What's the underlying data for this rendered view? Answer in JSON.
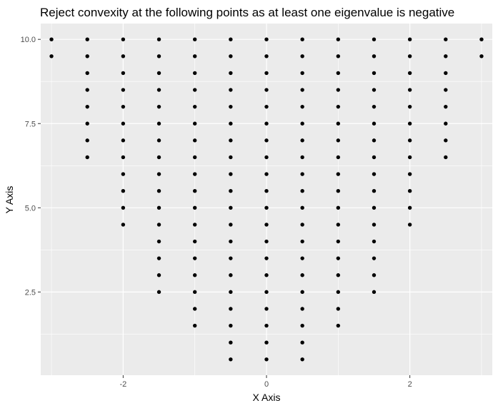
{
  "chart_data": {
    "type": "scatter",
    "title": "Reject convexity at the following points as at least one eigenvalue is negative",
    "xlabel": "X Axis",
    "ylabel": "Y Axis",
    "xlim": [
      -3.15,
      3.15
    ],
    "ylim": [
      0.03,
      10.47
    ],
    "x_ticks": [
      -2,
      0,
      2
    ],
    "x_tick_labels": [
      "-2",
      "0",
      "2"
    ],
    "y_ticks": [
      2.5,
      5.0,
      7.5,
      10.0
    ],
    "y_tick_labels": [
      "2.5",
      "5.0",
      "7.5",
      "10.0"
    ],
    "grid": true,
    "panel_background": "#EBEBEB",
    "grid_color": "#FFFFFF",
    "point_color": "#000000",
    "columns": [
      {
        "x": -3.0,
        "y_min": 9.5,
        "y_max": 10.0
      },
      {
        "x": -2.5,
        "y_min": 6.5,
        "y_max": 10.0
      },
      {
        "x": -2.0,
        "y_min": 4.5,
        "y_max": 10.0
      },
      {
        "x": -1.5,
        "y_min": 2.5,
        "y_max": 10.0
      },
      {
        "x": -1.0,
        "y_min": 1.5,
        "y_max": 10.0
      },
      {
        "x": -0.5,
        "y_min": 0.5,
        "y_max": 10.0
      },
      {
        "x": 0.0,
        "y_min": 0.5,
        "y_max": 10.0
      },
      {
        "x": 0.5,
        "y_min": 0.5,
        "y_max": 10.0
      },
      {
        "x": 1.0,
        "y_min": 1.5,
        "y_max": 10.0
      },
      {
        "x": 1.5,
        "y_min": 2.5,
        "y_max": 10.0
      },
      {
        "x": 2.0,
        "y_min": 4.5,
        "y_max": 10.0
      },
      {
        "x": 2.5,
        "y_min": 6.5,
        "y_max": 10.0
      },
      {
        "x": 3.0,
        "y_min": 9.5,
        "y_max": 10.0
      }
    ],
    "y_step": 0.5
  }
}
